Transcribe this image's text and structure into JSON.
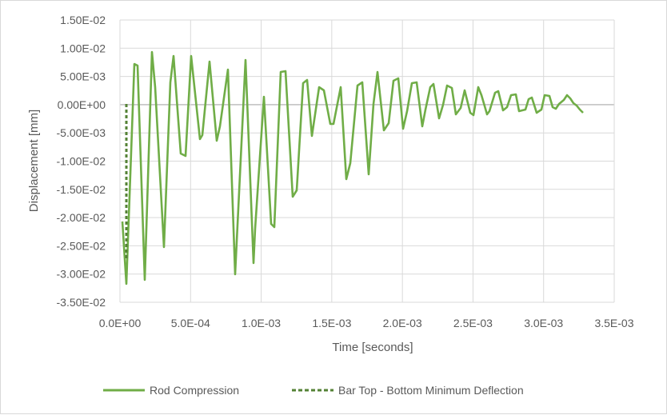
{
  "chart_data": {
    "type": "line",
    "title": "",
    "xlabel": "Time [seconds]",
    "ylabel": "Displacement [mm]",
    "xlim": [
      0,
      0.0035
    ],
    "ylim": [
      -0.035,
      0.015
    ],
    "x_ticks": [
      "0.0E+00",
      "5.0E-04",
      "1.0E-03",
      "1.5E-03",
      "2.0E-03",
      "2.5E-03",
      "3.0E-03",
      "3.5E-03"
    ],
    "y_ticks": [
      "1.50E-02",
      "1.00E-02",
      "5.00E-03",
      "0.00E+00",
      "-5.00E-03",
      "-1.00E-02",
      "-1.50E-02",
      "-2.00E-02",
      "-2.50E-02",
      "-3.00E-02",
      "-3.50E-02"
    ],
    "grid": true,
    "legend_position": "bottom",
    "series": [
      {
        "name": "Rod Compression",
        "color": "#70ad47",
        "style": "solid",
        "x": [
          3e-05,
          6e-05,
          0.0001,
          0.00012,
          0.00017,
          0.00022,
          0.00024,
          0.00027,
          0.00031,
          0.00035,
          0.00038,
          0.00042,
          0.00046,
          0.0005,
          0.00054,
          0.00056,
          0.0006,
          0.00064,
          0.00066,
          0.0007,
          0.00073,
          0.00077,
          0.00081,
          0.00085,
          0.00087,
          0.00091,
          0.00093,
          0.00097,
          0.001,
          0.00104,
          0.00107,
          0.00111,
          0.00114,
          0.00118,
          0.00121,
          0.00124,
          0.00128,
          0.00132,
          0.00136,
          0.0014,
          0.00143,
          0.00147,
          0.0015,
          0.00154,
          0.00157,
          0.00161,
          0.00164,
          0.00168,
          0.00171,
          0.00175,
          0.00178,
          0.00182,
          0.00185,
          0.00189,
          0.00192,
          0.00196,
          0.00199,
          0.00203,
          0.00206,
          0.0021,
          0.00214,
          0.00218,
          0.00221,
          0.00225,
          0.00228,
          0.00232,
          0.00235,
          0.00239,
          0.00242,
          0.00246,
          0.0025,
          0.00253,
          0.00257,
          0.0026,
          0.00264,
          0.00268,
          0.00271,
          0.00275,
          0.00278,
          0.00282,
          0.00285,
          0.00289,
          0.00292,
          0.00296,
          0.003,
          0.00303,
          0.00307,
          0.0031,
          0.00314,
          0.00317,
          0.0032
        ],
        "values": [
          -0.0207,
          -0.0318,
          0.0071,
          0.0068,
          -0.031,
          0.0093,
          0.003,
          -0.0252,
          0.004,
          0.0084,
          -0.0088,
          -0.0092,
          0.0086,
          -0.0062,
          -0.0055,
          0.0075,
          -0.0065,
          -0.004,
          0.0062,
          -0.03,
          0.008,
          -0.028,
          -0.022,
          0.0013,
          -0.021,
          -0.0215,
          0.0057,
          0.0058,
          -0.0162,
          -0.015,
          0.0038,
          0.0043,
          -0.0057,
          0.003,
          0.0026,
          -0.0035,
          0.0031,
          0.0022,
          -0.0132,
          0.0012,
          0.0034,
          -0.0124,
          0.0048,
          -0.0047,
          -0.0035,
          0.0044,
          -0.0045,
          0.0032,
          0.0039,
          -0.0041,
          -0.001,
          0.0031,
          0.003,
          -0.0038,
          0.0031,
          0.0024,
          -0.0025,
          0.0031,
          -0.0024,
          -0.002,
          0.0028,
          -0.0022,
          -0.002,
          0.0026,
          -0.002,
          -0.0017,
          0.002,
          -0.0019,
          -0.0015,
          0.0018,
          -0.0017,
          -0.0012,
          0.0016,
          -0.0015,
          0.0015,
          -0.0017,
          -0.0013,
          0.0015,
          0.0014,
          -0.001,
          -0.0016,
          0.0014,
          0.0013,
          -0.0006,
          -0.0015,
          -0.0016,
          -0.0015,
          -0.0013,
          -0.0014,
          -0.0015,
          -0.0016
        ]
      },
      {
        "name": "Bar Top - Bottom Minimum Deflection",
        "color": "#548235",
        "style": "dashed",
        "x": [
          5e-05,
          5e-05
        ],
        "values": [
          0.0,
          -0.0275
        ]
      }
    ]
  }
}
